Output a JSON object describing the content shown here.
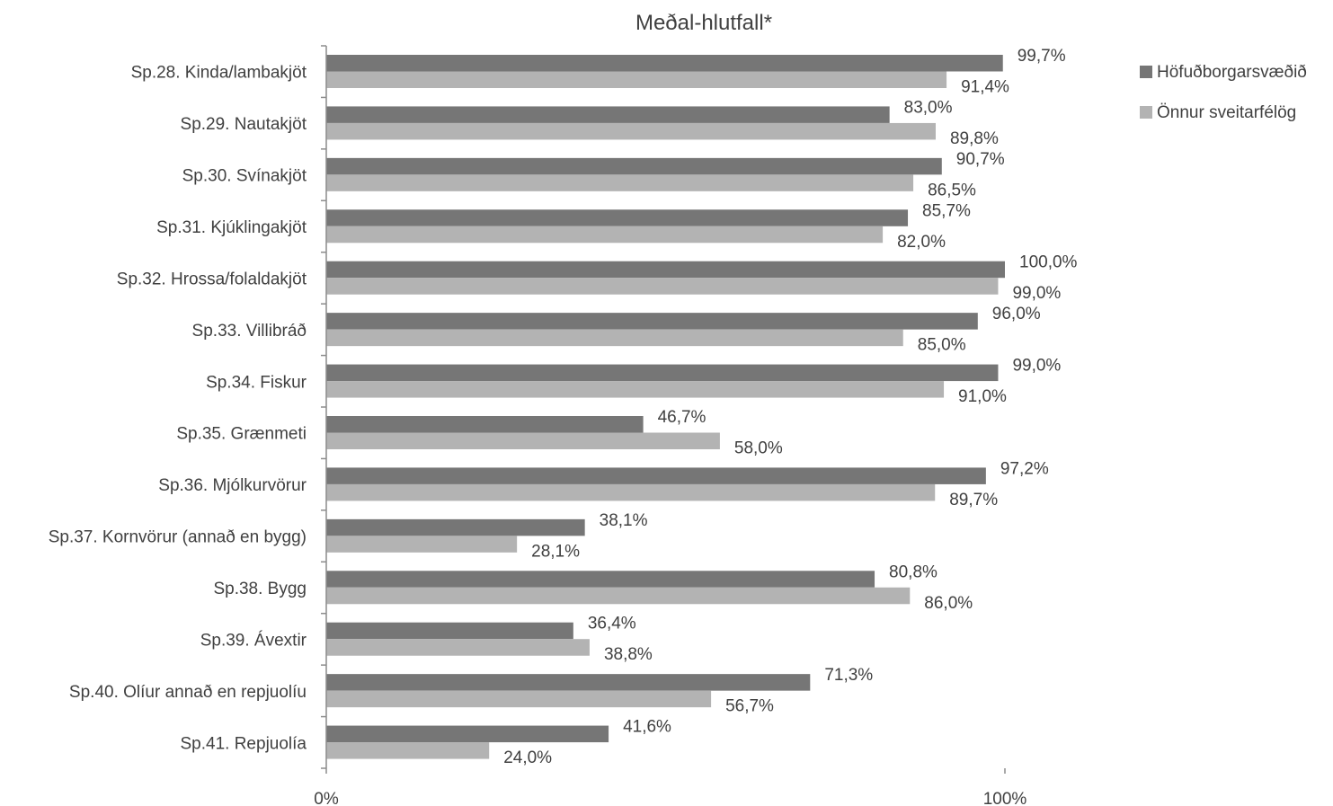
{
  "chart_data": {
    "type": "bar",
    "orientation": "horizontal",
    "title": "Meðal-hlutfall*",
    "categories": [
      "Sp.28. Kinda/lambakjöt",
      "Sp.29. Nautakjöt",
      "Sp.30. Svínakjöt",
      "Sp.31. Kjúklingakjöt",
      "Sp.32. Hrossa/folaldakjöt",
      "Sp.33. Villibráð",
      "Sp.34. Fiskur",
      "Sp.35. Grænmeti",
      "Sp.36. Mjólkurvörur",
      "Sp.37. Kornvörur (annað en bygg)",
      "Sp.38. Bygg",
      "Sp.39. Ávextir",
      "Sp.40. Olíur annað en repjuolíu",
      "Sp.41. Repjuolía"
    ],
    "series": [
      {
        "name": "Höfuðborgarsvæðið",
        "color": "#767676",
        "values": [
          99.7,
          83.0,
          90.7,
          85.7,
          100.0,
          96.0,
          99.0,
          46.7,
          97.2,
          38.1,
          80.8,
          36.4,
          71.3,
          41.6
        ],
        "labels": [
          "99,7%",
          "83,0%",
          "90,7%",
          "85,7%",
          "100,0%",
          "96,0%",
          "99,0%",
          "46,7%",
          "97,2%",
          "38,1%",
          "80,8%",
          "36,4%",
          "71,3%",
          "41,6%"
        ]
      },
      {
        "name": "Önnur sveitarfélög",
        "color": "#b3b3b3",
        "values": [
          91.4,
          89.8,
          86.5,
          82.0,
          99.0,
          85.0,
          91.0,
          58.0,
          89.7,
          28.1,
          86.0,
          38.8,
          56.7,
          24.0
        ],
        "labels": [
          "91,4%",
          "89,8%",
          "86,5%",
          "82,0%",
          "99,0%",
          "85,0%",
          "91,0%",
          "58,0%",
          "89,7%",
          "28,1%",
          "86,0%",
          "38,8%",
          "56,7%",
          "24,0%"
        ]
      }
    ],
    "xlim": [
      0,
      100
    ],
    "xticks": [
      0,
      100
    ],
    "xtick_labels": [
      "0%",
      "100%"
    ],
    "grid": false,
    "legend_position": "top-right"
  }
}
